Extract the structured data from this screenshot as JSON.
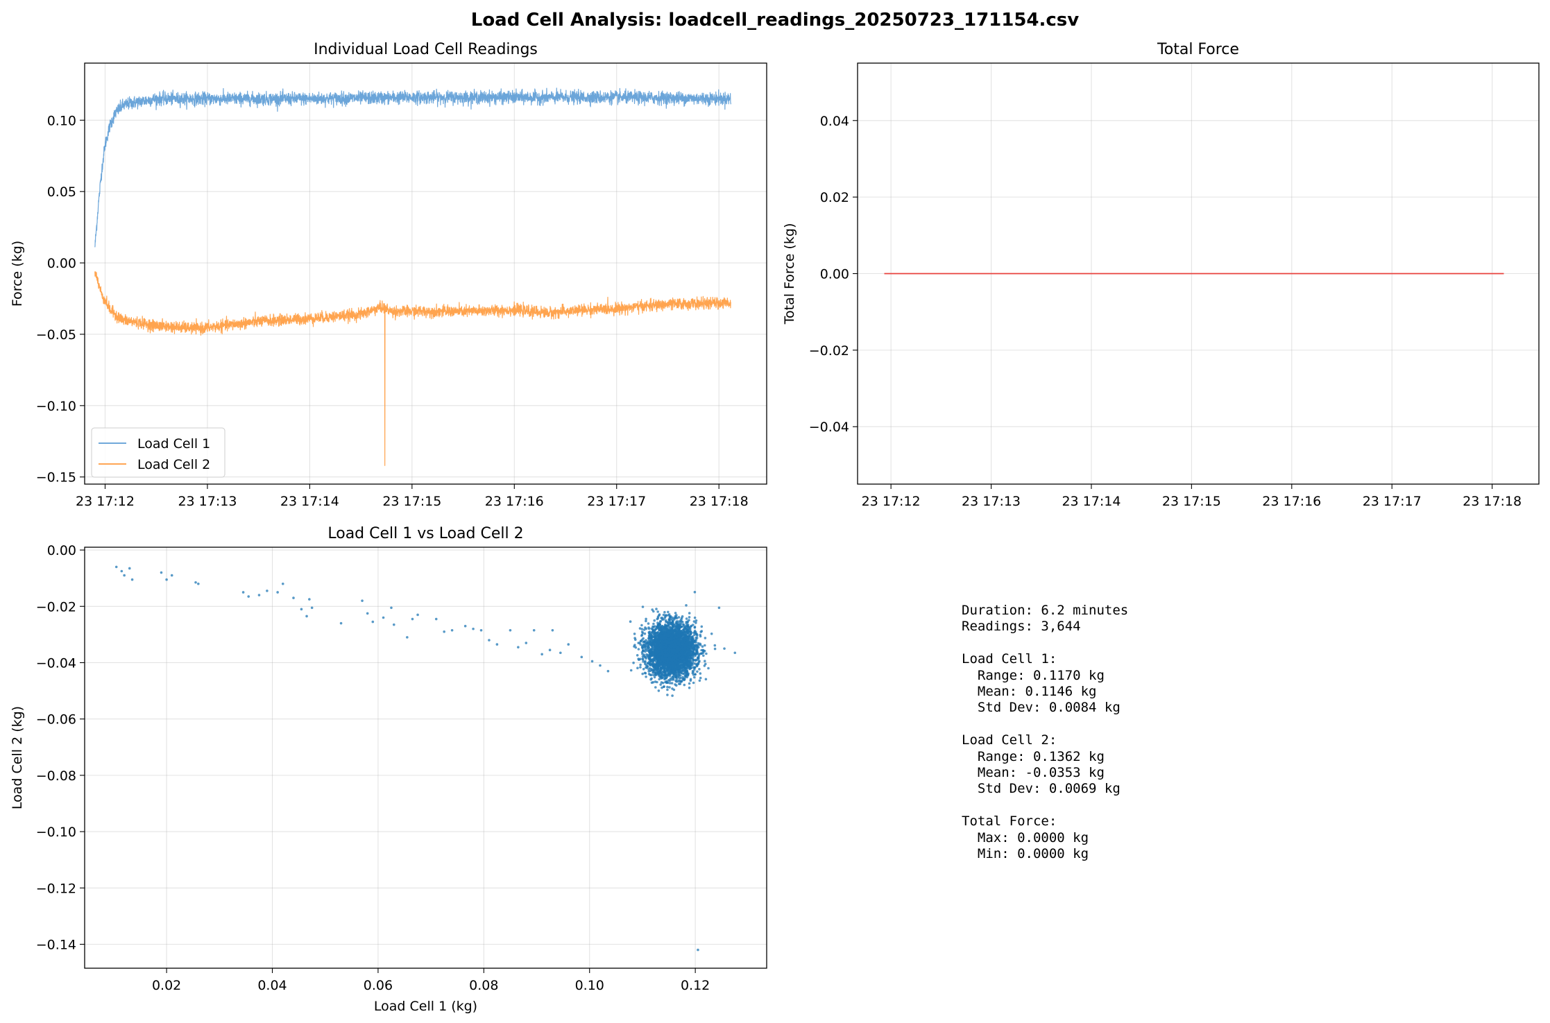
{
  "figure": {
    "suptitle": "Load Cell Analysis: loadcell_readings_20250723_171154.csv"
  },
  "chart_data": [
    {
      "type": "line",
      "title": "Individual Load Cell Readings",
      "xlabel": "",
      "ylabel": "Force (kg)",
      "x_axis": "time",
      "xlim": [
        "2025-07-23T17:11:48",
        "2025-07-23T17:18:28"
      ],
      "ylim": [
        -0.155,
        0.14
      ],
      "x_ticks": [
        "23 17:12",
        "23 17:13",
        "23 17:14",
        "23 17:15",
        "23 17:16",
        "23 17:17",
        "23 17:18"
      ],
      "y_ticks": [
        0.1,
        0.05,
        0.0,
        -0.05,
        -0.1,
        -0.15
      ],
      "y_tick_labels": [
        "0.10",
        "0.05",
        "0.00",
        "−0.05",
        "−0.10",
        "−0.15"
      ],
      "grid": true,
      "legend_position": "lower-left",
      "series": [
        {
          "name": "Load Cell 1",
          "color": "#5b9bd5",
          "points": [
            [
              "2025-07-23T17:11:54",
              0.011
            ],
            [
              "2025-07-23T17:11:56",
              0.04
            ],
            [
              "2025-07-23T17:11:58",
              0.065
            ],
            [
              "2025-07-23T17:12:00",
              0.083
            ],
            [
              "2025-07-23T17:12:03",
              0.097
            ],
            [
              "2025-07-23T17:12:06",
              0.105
            ],
            [
              "2025-07-23T17:12:10",
              0.11
            ],
            [
              "2025-07-23T17:12:15",
              0.112
            ],
            [
              "2025-07-23T17:12:30",
              0.115
            ],
            [
              "2025-07-23T17:13:00",
              0.115
            ],
            [
              "2025-07-23T17:14:00",
              0.115
            ],
            [
              "2025-07-23T17:15:00",
              0.116
            ],
            [
              "2025-07-23T17:16:00",
              0.116
            ],
            [
              "2025-07-23T17:17:00",
              0.116
            ],
            [
              "2025-07-23T17:18:07",
              0.115
            ]
          ],
          "noise_amplitude": 0.004
        },
        {
          "name": "Load Cell 2",
          "color": "#ff9a3c",
          "points": [
            [
              "2025-07-23T17:11:54",
              -0.006
            ],
            [
              "2025-07-23T17:11:58",
              -0.022
            ],
            [
              "2025-07-23T17:12:03",
              -0.033
            ],
            [
              "2025-07-23T17:12:10",
              -0.04
            ],
            [
              "2025-07-23T17:12:30",
              -0.044
            ],
            [
              "2025-07-23T17:12:55",
              -0.046
            ],
            [
              "2025-07-23T17:13:30",
              -0.041
            ],
            [
              "2025-07-23T17:14:00",
              -0.039
            ],
            [
              "2025-07-23T17:14:30",
              -0.036
            ],
            [
              "2025-07-23T17:14:42",
              -0.031
            ],
            [
              "2025-07-23T17:14:48",
              -0.034
            ],
            [
              "2025-07-23T17:15:30",
              -0.034
            ],
            [
              "2025-07-23T17:16:00",
              -0.033
            ],
            [
              "2025-07-23T17:16:20",
              -0.035
            ],
            [
              "2025-07-23T17:16:40",
              -0.033
            ],
            [
              "2025-07-23T17:17:00",
              -0.032
            ],
            [
              "2025-07-23T17:17:30",
              -0.029
            ],
            [
              "2025-07-23T17:18:07",
              -0.028
            ]
          ],
          "noise_amplitude": 0.0035,
          "spike": {
            "x": "2025-07-23T17:14:44",
            "y": -0.142
          }
        }
      ]
    },
    {
      "type": "line",
      "title": "Total Force",
      "xlabel": "",
      "ylabel": "Total Force (kg)",
      "x_axis": "time",
      "xlim": [
        "2025-07-23T17:11:40",
        "2025-07-23T17:18:28"
      ],
      "ylim": [
        -0.055,
        0.055
      ],
      "x_ticks": [
        "23 17:12",
        "23 17:13",
        "23 17:14",
        "23 17:15",
        "23 17:16",
        "23 17:17",
        "23 17:18"
      ],
      "y_ticks": [
        0.04,
        0.02,
        0.0,
        -0.02,
        -0.04
      ],
      "y_tick_labels": [
        "0.04",
        "0.02",
        "0.00",
        "−0.02",
        "−0.04"
      ],
      "grid": true,
      "series": [
        {
          "color": "#e8413c",
          "points": [
            [
              "2025-07-23T17:11:56",
              0.0
            ],
            [
              "2025-07-23T17:18:07",
              0.0
            ]
          ]
        }
      ]
    },
    {
      "type": "scatter",
      "title": "Load Cell 1 vs Load Cell 2",
      "xlabel": "Load Cell 1 (kg)",
      "ylabel": "Load Cell 2 (kg)",
      "xlim": [
        0.0045,
        0.1335
      ],
      "ylim": [
        -0.1485,
        0.001
      ],
      "x_ticks": [
        0.02,
        0.04,
        0.06,
        0.08,
        0.1,
        0.12
      ],
      "x_tick_labels": [
        "0.02",
        "0.04",
        "0.06",
        "0.08",
        "0.10",
        "0.12"
      ],
      "y_ticks": [
        0.0,
        -0.02,
        -0.04,
        -0.06,
        -0.08,
        -0.1,
        -0.12,
        -0.14
      ],
      "y_tick_labels": [
        "0.00",
        "−0.02",
        "−0.04",
        "−0.06",
        "−0.08",
        "−0.10",
        "−0.12",
        "−0.14"
      ],
      "grid": true,
      "color": "#1f77b4",
      "points": [
        [
          0.0105,
          -0.006
        ],
        [
          0.0115,
          -0.0075
        ],
        [
          0.012,
          -0.009
        ],
        [
          0.013,
          -0.0065
        ],
        [
          0.0135,
          -0.0105
        ],
        [
          0.019,
          -0.008
        ],
        [
          0.02,
          -0.0105
        ],
        [
          0.021,
          -0.009
        ],
        [
          0.0255,
          -0.0115
        ],
        [
          0.026,
          -0.012
        ],
        [
          0.0345,
          -0.015
        ],
        [
          0.0355,
          -0.0165
        ],
        [
          0.0375,
          -0.016
        ],
        [
          0.039,
          -0.0145
        ],
        [
          0.041,
          -0.015
        ],
        [
          0.042,
          -0.012
        ],
        [
          0.044,
          -0.017
        ],
        [
          0.0455,
          -0.021
        ],
        [
          0.0465,
          -0.0235
        ],
        [
          0.047,
          -0.0175
        ],
        [
          0.0475,
          -0.0205
        ],
        [
          0.053,
          -0.026
        ],
        [
          0.057,
          -0.018
        ],
        [
          0.058,
          -0.0225
        ],
        [
          0.059,
          -0.0255
        ],
        [
          0.061,
          -0.024
        ],
        [
          0.0625,
          -0.0205
        ],
        [
          0.063,
          -0.0265
        ],
        [
          0.0655,
          -0.031
        ],
        [
          0.0665,
          -0.0245
        ],
        [
          0.0675,
          -0.023
        ],
        [
          0.071,
          -0.0245
        ],
        [
          0.0725,
          -0.029
        ],
        [
          0.074,
          -0.0285
        ],
        [
          0.0765,
          -0.027
        ],
        [
          0.078,
          -0.028
        ],
        [
          0.0795,
          -0.0285
        ],
        [
          0.081,
          -0.032
        ],
        [
          0.0825,
          -0.0335
        ],
        [
          0.085,
          -0.0285
        ],
        [
          0.0865,
          -0.0345
        ],
        [
          0.088,
          -0.033
        ],
        [
          0.0895,
          -0.0285
        ],
        [
          0.091,
          -0.037
        ],
        [
          0.0925,
          -0.0355
        ],
        [
          0.093,
          -0.0285
        ],
        [
          0.0945,
          -0.0365
        ],
        [
          0.096,
          -0.0335
        ],
        [
          0.0985,
          -0.038
        ],
        [
          0.1005,
          -0.0395
        ],
        [
          0.102,
          -0.041
        ],
        [
          0.1035,
          -0.043
        ],
        [
          0.1245,
          -0.0205
        ],
        [
          0.1255,
          -0.035
        ],
        [
          0.1275,
          -0.0365
        ],
        [
          0.1205,
          -0.142
        ]
      ],
      "cluster": {
        "center": [
          0.1155,
          -0.0355
        ],
        "std": [
          0.0023,
          0.0048
        ],
        "count": 3580
      }
    }
  ],
  "stats_text": "Duration: 6.2 minutes\nReadings: 3,644\n\nLoad Cell 1:\n  Range: 0.1170 kg\n  Mean: 0.1146 kg\n  Std Dev: 0.0084 kg\n\nLoad Cell 2:\n  Range: 0.1362 kg\n  Mean: -0.0353 kg\n  Std Dev: 0.0069 kg\n\nTotal Force:\n  Max: 0.0000 kg\n  Min: 0.0000 kg"
}
